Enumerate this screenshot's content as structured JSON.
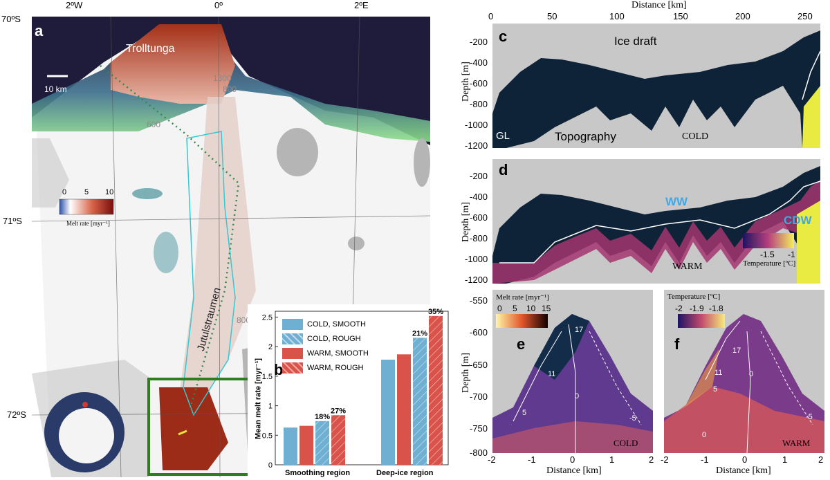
{
  "panel_a": {
    "label": "a",
    "lon_ticks": [
      "2ºW",
      "0º",
      "2ºE"
    ],
    "lat_ticks": [
      "70ºS",
      "71ºS",
      "72ºS"
    ],
    "place_trolltunga": "Trolltunga",
    "place_jutulstraumen": "Jutulstraumen",
    "scale_label": "10 km",
    "contour_labels": [
      "1800",
      "800",
      "600",
      "800"
    ],
    "colorbar": {
      "ticks": [
        "0",
        "5",
        "10"
      ],
      "label": "Melt rate [myr⁻¹]"
    },
    "colors": {
      "ocean": "#1e1c3a",
      "melt": "#b83a22",
      "shelf": "#f2f2f2",
      "green_box": "#2e7d1e"
    }
  },
  "panel_b": {
    "label": "b",
    "ylabel": "Mean melt rate [myr⁻¹]",
    "legend": [
      "COLD, SMOOTH",
      "COLD, ROUGH",
      "WARM, SMOOTH",
      "WARM, ROUGH"
    ],
    "annotations": [
      "18%",
      "27%",
      "21%",
      "35%"
    ],
    "yticks": [
      "0",
      "0.5",
      "1",
      "1.5",
      "2",
      "2.5"
    ],
    "xcats": [
      "Smoothing region",
      "Deep-ice region"
    ]
  },
  "panel_c": {
    "label": "c",
    "title_top": "Distance [km]",
    "xticks": [
      "0",
      "50",
      "100",
      "150",
      "200",
      "250"
    ],
    "yticks": [
      "-200",
      "-400",
      "-600",
      "-800",
      "-1000",
      "-1200"
    ],
    "ylabel": "Depth [m]",
    "ice_draft": "Ice draft",
    "topography": "Topography",
    "gl": "GL",
    "cold": "COLD"
  },
  "panel_d": {
    "label": "d",
    "yticks": [
      "-200",
      "-400",
      "-600",
      "-800",
      "-1000",
      "-1200"
    ],
    "ylabel": "Depth [m]",
    "ww": "WW",
    "cdw": "CDW",
    "warm": "WARM",
    "colorbar": {
      "ticks": [
        "-1.5",
        "-1"
      ],
      "label": "Temperature [ºC]"
    }
  },
  "panel_e": {
    "label": "e",
    "ylabel": "Depth [m]",
    "yticks": [
      "-550",
      "-600",
      "-650",
      "-700",
      "-750",
      "-800"
    ],
    "xticks": [
      "-2",
      "-1",
      "0",
      "1",
      "2"
    ],
    "xlabel": "Distance [km]",
    "cold": "COLD",
    "contours": [
      "17",
      "11",
      "5",
      "0",
      "-5"
    ],
    "colorbar": {
      "label": "Melt rate [myr⁻¹]",
      "ticks": [
        "0",
        "5",
        "10",
        "15"
      ]
    }
  },
  "panel_f": {
    "label": "f",
    "xticks": [
      "-2",
      "-1",
      "0",
      "1",
      "2"
    ],
    "xlabel": "Distance [km]",
    "warm": "WARM",
    "contours": [
      "17",
      "11",
      "5",
      "0",
      "0",
      "-5"
    ],
    "colorbar": {
      "label": "Temperature [ºC]",
      "ticks": [
        "-2",
        "-1.9",
        "-1.8"
      ]
    }
  },
  "chart_data": {
    "type": "bar",
    "categories": [
      "Smoothing region",
      "Deep-ice region"
    ],
    "series": [
      {
        "name": "COLD, SMOOTH",
        "values": [
          0.63,
          1.78
        ],
        "color": "#6fb0d2"
      },
      {
        "name": "WARM, SMOOTH",
        "values": [
          0.66,
          1.87
        ],
        "color": "#d9534a"
      },
      {
        "name": "COLD, ROUGH",
        "values": [
          0.74,
          2.15
        ],
        "color": "#6fb0d2"
      },
      {
        "name": "WARM, ROUGH",
        "values": [
          0.84,
          2.52
        ],
        "color": "#d9534a"
      }
    ],
    "ylabel": "Mean melt rate [myr⁻¹]",
    "ylim": [
      0,
      2.6
    ]
  }
}
